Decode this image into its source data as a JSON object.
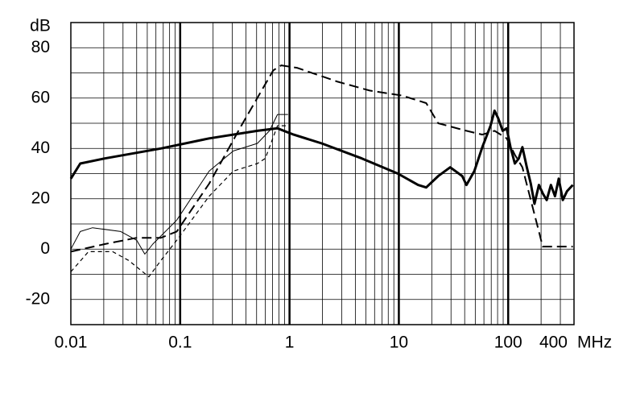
{
  "chart_data": {
    "type": "line",
    "y_label": "dB",
    "x_label": "MHz",
    "xscale": "log",
    "xlim": [
      0.01,
      400
    ],
    "xticks": [
      0.01,
      0.1,
      1,
      10,
      100,
      400
    ],
    "ylim": [
      -30,
      90
    ],
    "yticks": [
      -20,
      0,
      20,
      40,
      60,
      80
    ],
    "y_minor_ticks": [
      -30,
      -10,
      10,
      30,
      50,
      70,
      90
    ],
    "grid": true,
    "series": [
      {
        "color": "#000000",
        "width": 3,
        "dash": "solid",
        "x": [
          0.01,
          0.0122,
          0.0204,
          0.0667,
          0.184,
          0.508,
          0.776,
          1.09,
          1.97,
          4.59,
          9.8,
          15,
          17.8,
          22.9,
          29.5,
          38,
          41.5,
          49,
          58,
          69,
          75,
          81,
          89,
          97,
          105,
          115,
          125,
          135,
          148,
          161,
          174,
          191,
          208,
          225,
          246,
          268,
          290,
          316,
          345,
          390
        ],
        "values": [
          28,
          34,
          36,
          40,
          44,
          47,
          48,
          45.5,
          42,
          36,
          30,
          25.5,
          24.5,
          29,
          32.5,
          29,
          25.5,
          31,
          40.5,
          49,
          55,
          52,
          47,
          48,
          40.5,
          34,
          36,
          40.5,
          32.5,
          26,
          18,
          25.5,
          22,
          19.5,
          25.5,
          21,
          28,
          19.5,
          23,
          25.5
        ]
      },
      {
        "color": "#000000",
        "width": 2,
        "dash": "long",
        "x": [
          0.01,
          0.0204,
          0.04,
          0.0667,
          0.093,
          0.184,
          0.362,
          0.71,
          0.84,
          1.18,
          2.75,
          5.4,
          10.7,
          17.8,
          22.9,
          41.5,
          58,
          75,
          97,
          115,
          135,
          161,
          191,
          207,
          390
        ],
        "values": [
          -1,
          2,
          4.5,
          4.5,
          7,
          26,
          49,
          71,
          73,
          72,
          66.5,
          63,
          61,
          58,
          50,
          47,
          45.5,
          47,
          44,
          37.5,
          32.5,
          19.5,
          7,
          1,
          1
        ]
      },
      {
        "color": "#000000",
        "width": 1,
        "dash": "solid",
        "x": [
          0.01,
          0.0122,
          0.0158,
          0.0286,
          0.04,
          0.0475,
          0.0562,
          0.093,
          0.184,
          0.306,
          0.508,
          0.655,
          0.776,
          0.97
        ],
        "values": [
          0,
          7,
          8.5,
          7,
          3.5,
          -2,
          2,
          11.5,
          31,
          39,
          42,
          47,
          53.5,
          53.5
        ]
      },
      {
        "color": "#000000",
        "width": 1.2,
        "dash": "short",
        "x": [
          0.01,
          0.0145,
          0.0241,
          0.0338,
          0.0517,
          0.0667,
          0.093,
          0.184,
          0.306,
          0.508,
          0.6,
          0.776,
          0.97
        ],
        "values": [
          -9,
          -1,
          -1,
          -4.5,
          -11,
          -4.5,
          3.5,
          21,
          31,
          34,
          36,
          49,
          49
        ]
      }
    ]
  }
}
